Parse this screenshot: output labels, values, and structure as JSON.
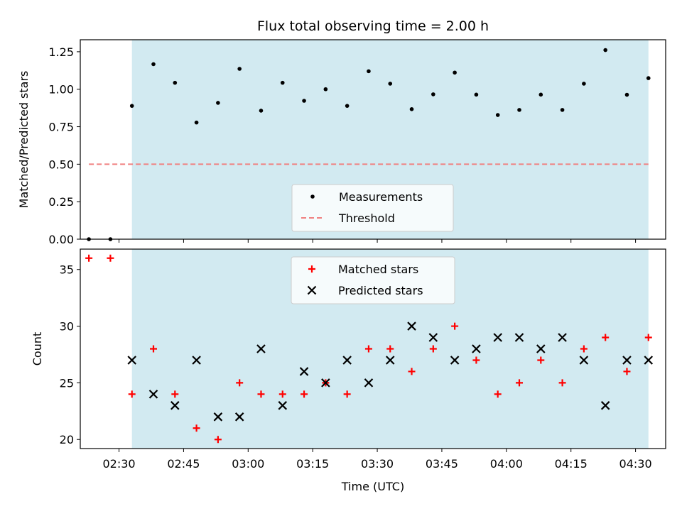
{
  "chart_data": {
    "title": "Flux total observing time = 2.00 h",
    "xlabel": "Time (UTC)",
    "x_ticks": [
      "02:30",
      "02:45",
      "03:00",
      "03:15",
      "03:30",
      "03:45",
      "04:00",
      "04:15",
      "04:30"
    ],
    "x_range": [
      "02:21",
      "04:37"
    ],
    "shaded_interval": [
      "02:33",
      "04:33"
    ],
    "shade_color": "#add8e6",
    "colors": {
      "measurements": "#000000",
      "threshold": "#f08080",
      "matched": "#ff0000",
      "predicted": "#000000"
    },
    "times": [
      "02:23",
      "02:28",
      "02:33",
      "02:38",
      "02:43",
      "02:48",
      "02:53",
      "02:58",
      "03:03",
      "03:08",
      "03:13",
      "03:18",
      "03:23",
      "03:28",
      "03:33",
      "03:38",
      "03:43",
      "03:48",
      "03:53",
      "03:58",
      "04:03",
      "04:08",
      "04:13",
      "04:18",
      "04:23",
      "04:28",
      "04:33"
    ],
    "panels": [
      {
        "type": "scatter",
        "ylabel": "Matched/Predicted stars",
        "ylim": [
          0,
          1.33
        ],
        "y_ticks": [
          "0.00",
          "0.25",
          "0.50",
          "0.75",
          "1.00",
          "1.25"
        ],
        "legend_position": "lower-center",
        "series": [
          {
            "name": "Measurements",
            "marker": "dot",
            "values": [
              0.0,
              0.0,
              0.889,
              1.167,
              1.043,
              0.778,
              0.909,
              1.136,
              0.857,
              1.043,
              0.923,
              1.0,
              0.889,
              1.12,
              1.037,
              0.867,
              0.966,
              1.111,
              0.964,
              0.828,
              0.862,
              0.964,
              0.862,
              1.037,
              1.261,
              0.963,
              1.074
            ]
          },
          {
            "name": "Threshold",
            "type": "dashed-line",
            "x": [
              "02:23",
              "04:33"
            ],
            "values": [
              0.5,
              0.5
            ]
          }
        ]
      },
      {
        "type": "scatter",
        "ylabel": "Count",
        "ylim": [
          19.2,
          36.8
        ],
        "y_ticks": [
          "20",
          "25",
          "30",
          "35"
        ],
        "legend_position": "upper-center",
        "series": [
          {
            "name": "Matched stars",
            "marker": "plus",
            "values": [
              36,
              36,
              24,
              28,
              24,
              21,
              20,
              25,
              24,
              24,
              24,
              25,
              24,
              28,
              28,
              26,
              28,
              30,
              27,
              24,
              25,
              27,
              25,
              28,
              29,
              26,
              29
            ]
          },
          {
            "name": "Predicted stars",
            "marker": "x",
            "values": [
              null,
              null,
              27,
              24,
              23,
              27,
              22,
              22,
              28,
              23,
              26,
              25,
              27,
              25,
              27,
              30,
              29,
              27,
              28,
              29,
              29,
              28,
              29,
              27,
              23,
              27,
              27
            ]
          }
        ]
      }
    ]
  }
}
